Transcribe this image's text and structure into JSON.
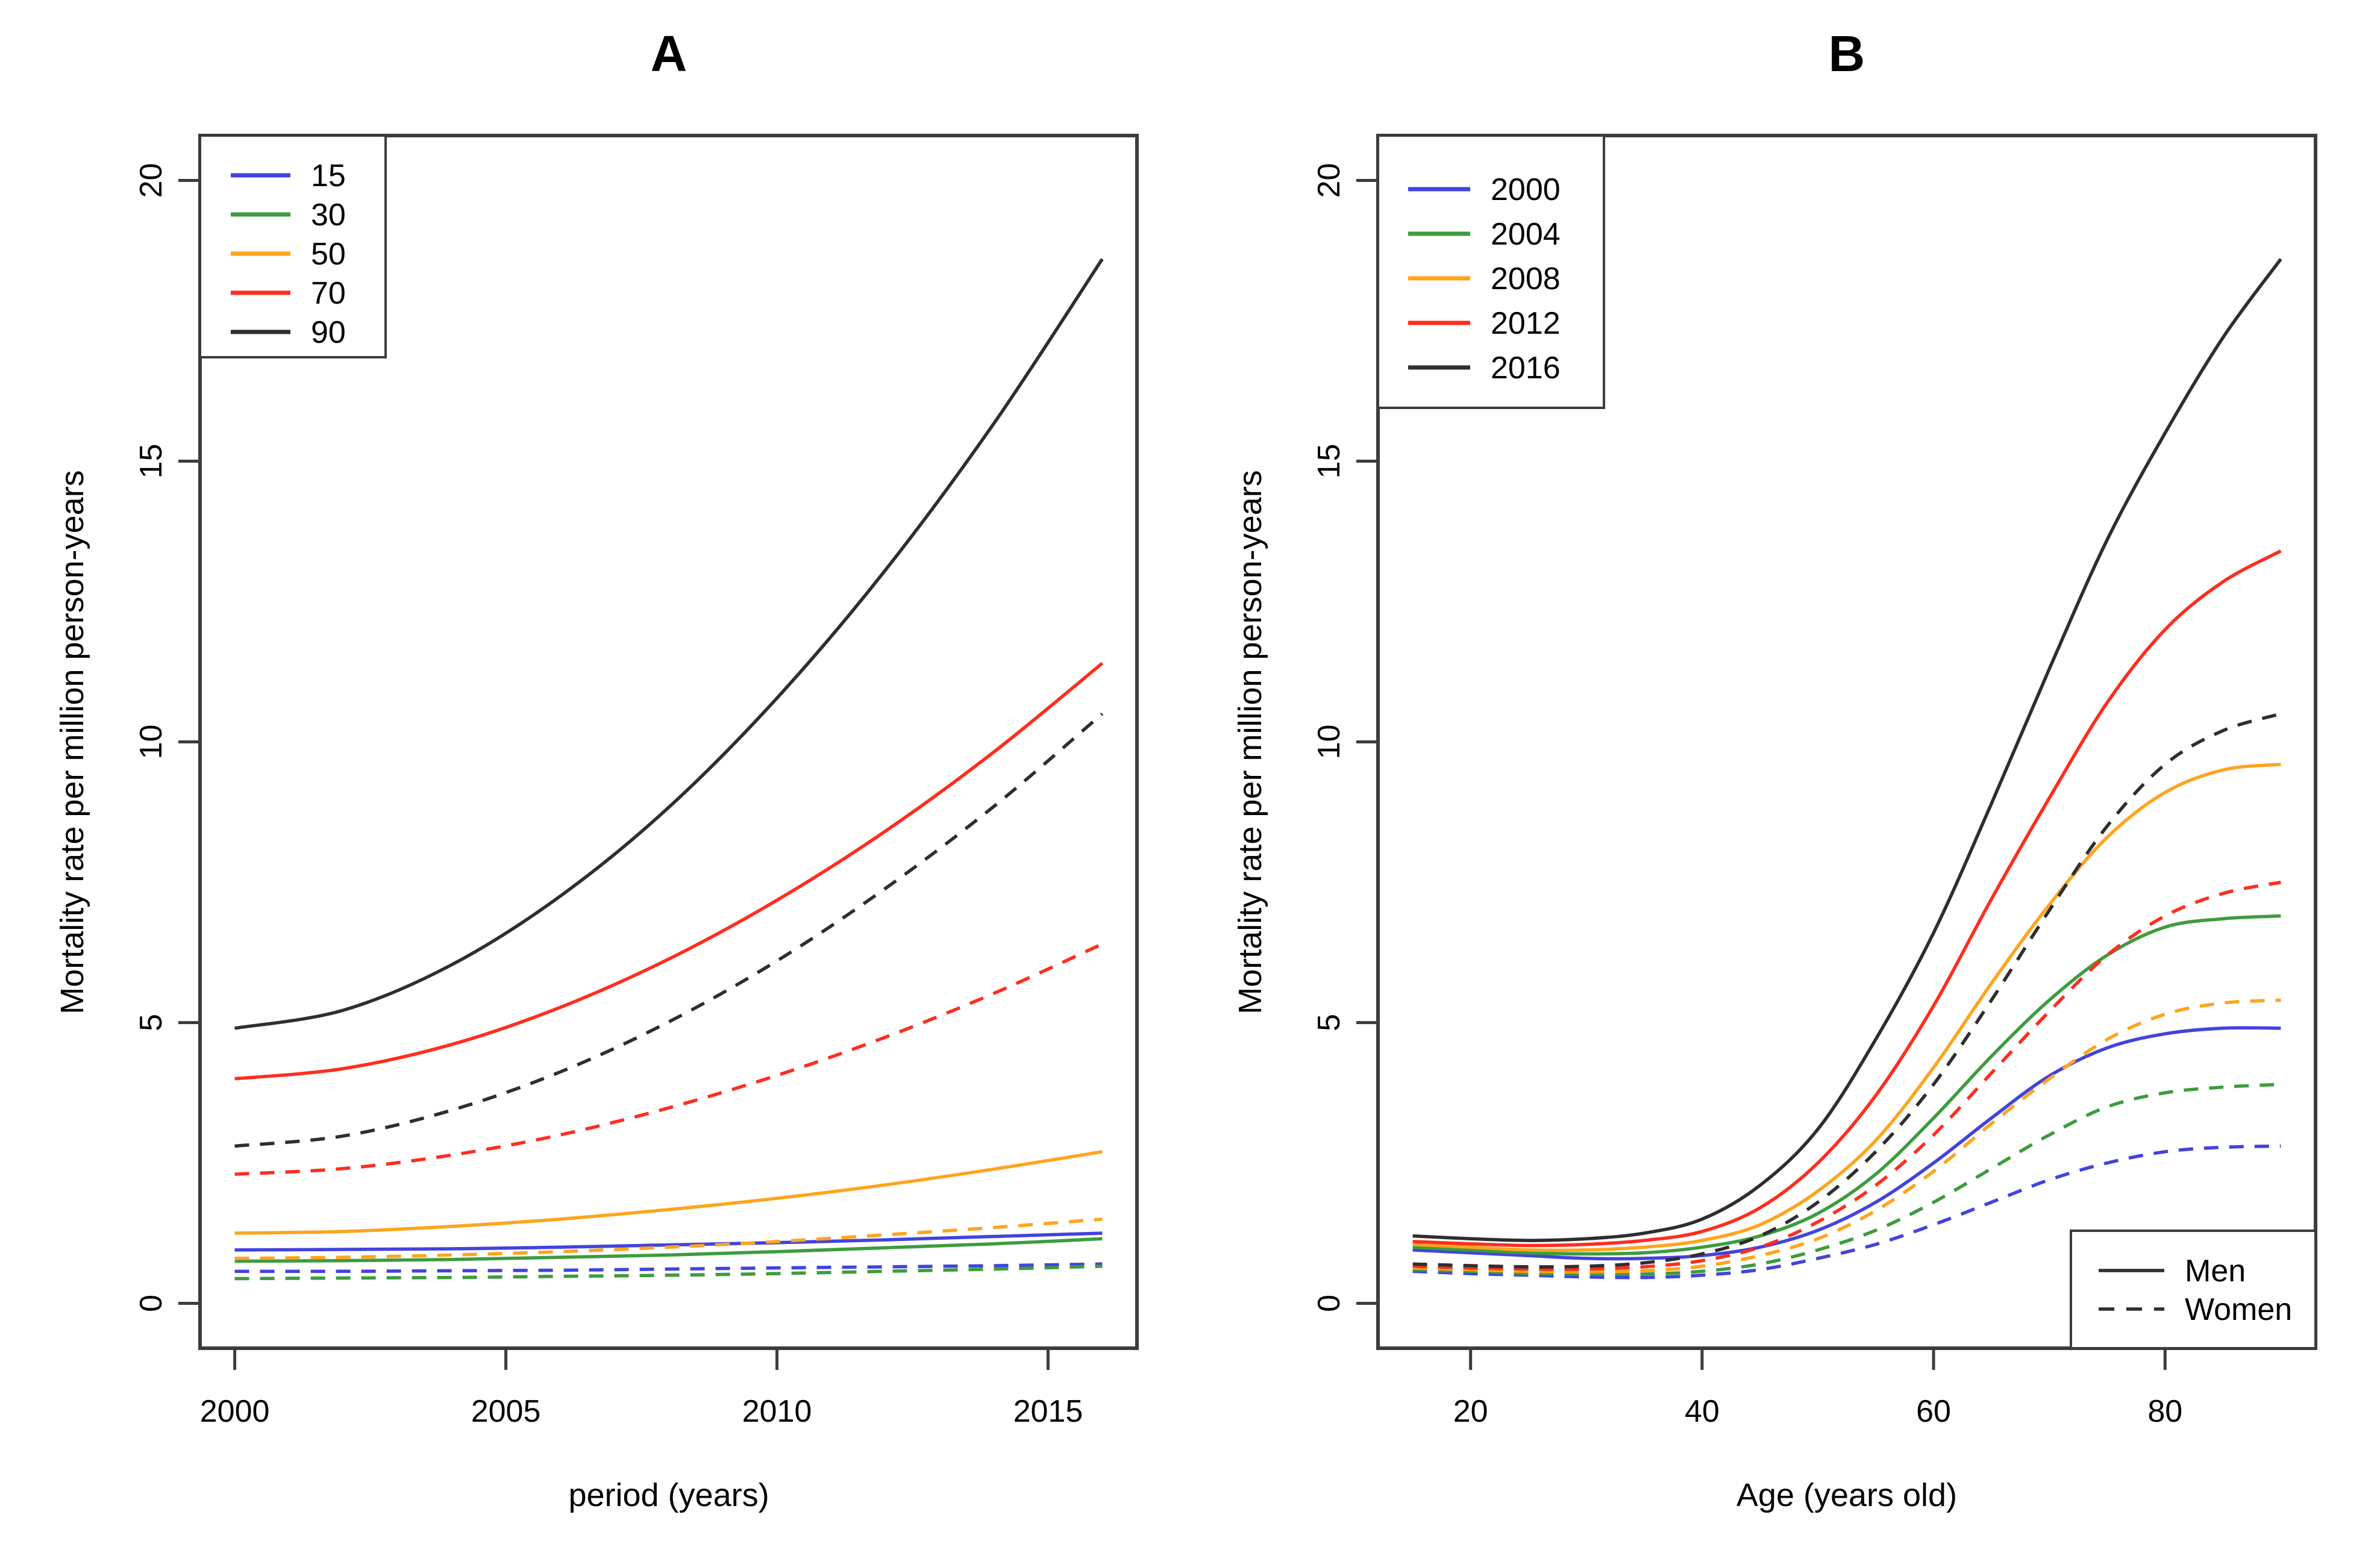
{
  "figure": {
    "background": "#ffffff",
    "axis_color": "#3c3c3c",
    "text_color": "#000000"
  },
  "colors": {
    "blue": "#4343DF",
    "green": "#3D9C3D",
    "orange": "#FFA41E",
    "red": "#FF2D1E",
    "black": "#2E2E2E"
  },
  "chart_data": [
    {
      "id": "A",
      "type": "line",
      "title": "A",
      "xlabel": "period (years)",
      "ylabel": "Mortality rate per million person-years",
      "xlim": [
        1999.36,
        2016.64
      ],
      "ylim": [
        -0.8,
        20.8
      ],
      "xticks": [
        "2000",
        "2005",
        "2010",
        "2015"
      ],
      "xtick_values": [
        2000,
        2005,
        2010,
        2015
      ],
      "yticks": [
        "0",
        "5",
        "10",
        "15",
        "20"
      ],
      "ytick_values": [
        0,
        5,
        10,
        15,
        20
      ],
      "grid": false,
      "legend": {
        "position": "topleft",
        "entries": [
          {
            "label": "15",
            "color": "blue",
            "dash": false
          },
          {
            "label": "30",
            "color": "green",
            "dash": false
          },
          {
            "label": "50",
            "color": "orange",
            "dash": false
          },
          {
            "label": "70",
            "color": "red",
            "dash": false
          },
          {
            "label": "90",
            "color": "black",
            "dash": false
          }
        ]
      },
      "x": [
        2000,
        2002,
        2004,
        2006,
        2008,
        2010,
        2012,
        2014,
        2016
      ],
      "series": [
        {
          "name": "age 15 Men",
          "color": "blue",
          "dash": false,
          "values": [
            0.95,
            0.96,
            0.97,
            1.0,
            1.04,
            1.08,
            1.13,
            1.19,
            1.25
          ]
        },
        {
          "name": "age 30 Men",
          "color": "green",
          "dash": false,
          "values": [
            0.75,
            0.76,
            0.78,
            0.82,
            0.86,
            0.92,
            0.99,
            1.06,
            1.15
          ]
        },
        {
          "name": "age 50 Men",
          "color": "orange",
          "dash": false,
          "values": [
            1.25,
            1.28,
            1.37,
            1.5,
            1.67,
            1.87,
            2.11,
            2.39,
            2.7
          ]
        },
        {
          "name": "age 70 Men",
          "color": "red",
          "dash": false,
          "values": [
            4.0,
            4.18,
            4.61,
            5.27,
            6.13,
            7.18,
            8.41,
            9.82,
            11.4
          ]
        },
        {
          "name": "age 90 Men",
          "color": "black",
          "dash": false,
          "values": [
            4.9,
            5.22,
            6.03,
            7.25,
            8.83,
            10.78,
            13.06,
            15.67,
            18.6
          ]
        },
        {
          "name": "age 15 Women",
          "color": "blue",
          "dash": true,
          "values": [
            0.57,
            0.57,
            0.58,
            0.59,
            0.61,
            0.63,
            0.65,
            0.67,
            0.7
          ]
        },
        {
          "name": "age 30 Women",
          "color": "green",
          "dash": true,
          "values": [
            0.44,
            0.45,
            0.46,
            0.48,
            0.5,
            0.53,
            0.57,
            0.61,
            0.66
          ]
        },
        {
          "name": "age 50 Women",
          "color": "orange",
          "dash": true,
          "values": [
            0.8,
            0.82,
            0.86,
            0.92,
            1.0,
            1.1,
            1.22,
            1.35,
            1.5
          ]
        },
        {
          "name": "age 70 Women",
          "color": "red",
          "dash": true,
          "values": [
            2.3,
            2.4,
            2.64,
            3.0,
            3.48,
            4.06,
            4.74,
            5.52,
            6.4
          ]
        },
        {
          "name": "age 90 Women",
          "color": "black",
          "dash": true,
          "values": [
            2.8,
            2.98,
            3.44,
            4.12,
            5.01,
            6.1,
            7.39,
            8.85,
            10.5
          ]
        }
      ]
    },
    {
      "id": "B",
      "type": "line",
      "title": "B",
      "xlabel": "Age (years old)",
      "ylabel": "Mortality rate per million person-years",
      "xlim": [
        12,
        93
      ],
      "ylim": [
        -0.8,
        20.8
      ],
      "xticks": [
        "20",
        "40",
        "60",
        "80"
      ],
      "xtick_values": [
        20,
        40,
        60,
        80
      ],
      "yticks": [
        "0",
        "5",
        "10",
        "15",
        "20"
      ],
      "ytick_values": [
        0,
        5,
        10,
        15,
        20
      ],
      "grid": false,
      "legend": {
        "position": "topleft",
        "entries": [
          {
            "label": "2000",
            "color": "blue",
            "dash": false
          },
          {
            "label": "2004",
            "color": "green",
            "dash": false
          },
          {
            "label": "2008",
            "color": "orange",
            "dash": false
          },
          {
            "label": "2012",
            "color": "red",
            "dash": false
          },
          {
            "label": "2016",
            "color": "black",
            "dash": false
          }
        ]
      },
      "legend2": {
        "position": "bottomright",
        "entries": [
          {
            "label": "Men",
            "color": "black",
            "dash": false
          },
          {
            "label": "Women",
            "color": "black",
            "dash": true
          }
        ]
      },
      "x": [
        15,
        20,
        25,
        30,
        35,
        40,
        45,
        50,
        55,
        60,
        65,
        70,
        75,
        80,
        85,
        90
      ],
      "series": [
        {
          "name": "2000 Men",
          "color": "blue",
          "dash": false,
          "values": [
            0.95,
            0.9,
            0.85,
            0.8,
            0.8,
            0.85,
            1.0,
            1.3,
            1.8,
            2.5,
            3.3,
            4.05,
            4.55,
            4.8,
            4.9,
            4.9
          ]
        },
        {
          "name": "2004 Men",
          "color": "green",
          "dash": false,
          "values": [
            1.0,
            0.95,
            0.9,
            0.88,
            0.9,
            1.0,
            1.2,
            1.6,
            2.3,
            3.3,
            4.4,
            5.4,
            6.2,
            6.7,
            6.85,
            6.9
          ]
        },
        {
          "name": "2008 Men",
          "color": "orange",
          "dash": false,
          "values": [
            1.05,
            1.0,
            0.95,
            0.95,
            1.0,
            1.12,
            1.4,
            2.0,
            2.9,
            4.2,
            5.7,
            7.1,
            8.3,
            9.1,
            9.5,
            9.6
          ]
        },
        {
          "name": "2012 Men",
          "color": "red",
          "dash": false,
          "values": [
            1.1,
            1.06,
            1.03,
            1.05,
            1.12,
            1.28,
            1.7,
            2.5,
            3.7,
            5.3,
            7.2,
            9.0,
            10.7,
            12.0,
            12.85,
            13.4
          ]
        },
        {
          "name": "2016 Men",
          "color": "black",
          "dash": false,
          "values": [
            1.2,
            1.15,
            1.12,
            1.15,
            1.25,
            1.5,
            2.1,
            3.1,
            4.7,
            6.6,
            8.9,
            11.3,
            13.6,
            15.5,
            17.2,
            18.6
          ]
        },
        {
          "name": "2000 Women",
          "color": "blue",
          "dash": true,
          "values": [
            0.57,
            0.53,
            0.5,
            0.47,
            0.46,
            0.5,
            0.6,
            0.8,
            1.05,
            1.4,
            1.8,
            2.2,
            2.5,
            2.7,
            2.78,
            2.8
          ]
        },
        {
          "name": "2004 Women",
          "color": "green",
          "dash": true,
          "values": [
            0.6,
            0.57,
            0.53,
            0.52,
            0.52,
            0.57,
            0.7,
            0.95,
            1.3,
            1.8,
            2.4,
            3.0,
            3.5,
            3.75,
            3.85,
            3.9
          ]
        },
        {
          "name": "2008 Women",
          "color": "orange",
          "dash": true,
          "values": [
            0.63,
            0.6,
            0.57,
            0.56,
            0.58,
            0.66,
            0.85,
            1.15,
            1.65,
            2.35,
            3.2,
            4.0,
            4.7,
            5.15,
            5.35,
            5.4
          ]
        },
        {
          "name": "2012 Women",
          "color": "red",
          "dash": true,
          "values": [
            0.66,
            0.63,
            0.61,
            0.61,
            0.65,
            0.76,
            1.0,
            1.45,
            2.1,
            3.0,
            4.1,
            5.2,
            6.2,
            6.9,
            7.3,
            7.5
          ]
        },
        {
          "name": "2016 Women",
          "color": "black",
          "dash": true,
          "values": [
            0.7,
            0.67,
            0.65,
            0.66,
            0.72,
            0.88,
            1.2,
            1.8,
            2.7,
            3.9,
            5.4,
            7.0,
            8.5,
            9.6,
            10.2,
            10.5
          ]
        }
      ]
    }
  ]
}
